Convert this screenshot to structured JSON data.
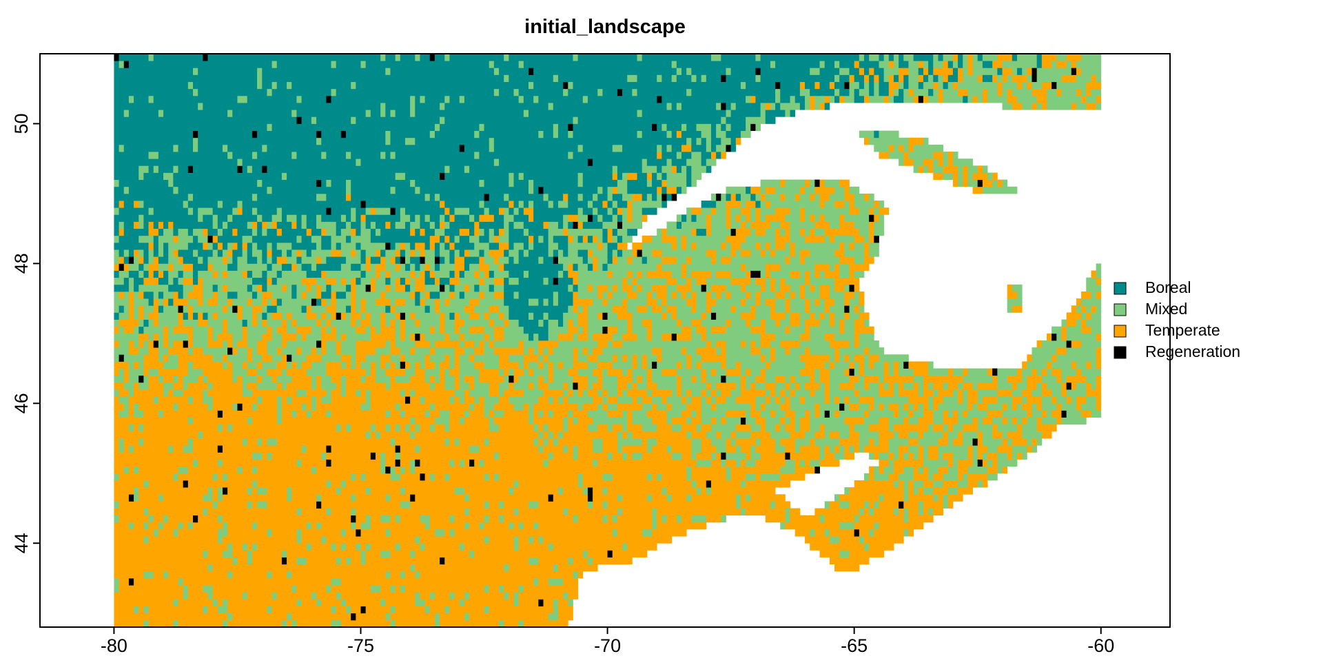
{
  "chart_data": {
    "type": "heatmap",
    "title": "initial_landscape",
    "xlabel": "",
    "ylabel": "",
    "xlim": [
      -81.5,
      -58.6
    ],
    "ylim": [
      42.8,
      51.0
    ],
    "x_ticks": [
      -80,
      -75,
      -70,
      -65,
      -60
    ],
    "x_tick_labels": [
      "-80",
      "-75",
      "-70",
      "-65",
      "-60"
    ],
    "y_ticks": [
      44,
      46,
      48,
      50
    ],
    "y_tick_labels": [
      "44",
      "46",
      "48",
      "50"
    ],
    "raster_extent": {
      "lon": [
        -80,
        -60
      ],
      "lat": [
        42.8,
        51.0
      ]
    },
    "cell_size_deg": 0.1,
    "legend_position": "right",
    "legend": [
      {
        "label": "Boreal",
        "color": "#008B8B"
      },
      {
        "label": "Mixed",
        "color": "#7FCC7F"
      },
      {
        "label": "Temperate",
        "color": "#FFA500"
      },
      {
        "label": "Regeneration",
        "color": "#000000"
      }
    ],
    "background_color": "#FFFFFF"
  }
}
